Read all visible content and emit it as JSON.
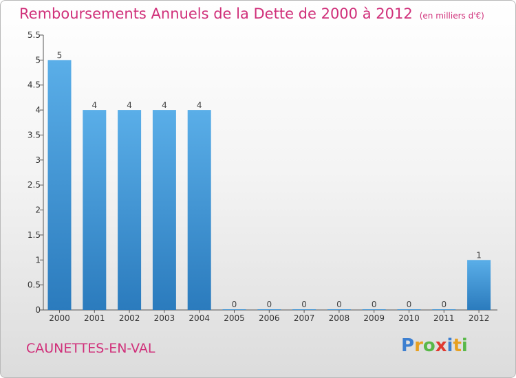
{
  "chart_data": {
    "type": "bar",
    "title": "Remboursements Annuels de la Dette de 2000 à 2012",
    "subtitle": "(en milliers d'€)",
    "categories": [
      "2000",
      "2001",
      "2002",
      "2003",
      "2004",
      "2005",
      "2006",
      "2007",
      "2008",
      "2009",
      "2010",
      "2011",
      "2012"
    ],
    "values": [
      5,
      4,
      4,
      4,
      4,
      0,
      0,
      0,
      0,
      0,
      0,
      0,
      1
    ],
    "data_labels": [
      "5",
      "4",
      "4",
      "4",
      "4",
      "0",
      "0",
      "0",
      "0",
      "0",
      "0",
      "0",
      "1"
    ],
    "ylim": [
      0,
      5.5
    ],
    "yticks": [
      0,
      0.5,
      1,
      1.5,
      2,
      2.5,
      3,
      3.5,
      4,
      4.5,
      5,
      5.5
    ],
    "ytick_labels": [
      "0",
      "0.5",
      "1",
      "1.5",
      "2",
      "2.5",
      "3",
      "3.5",
      "4",
      "4.5",
      "5",
      "5.5"
    ],
    "grid": false,
    "bar_color_top": "#5aaee8",
    "bar_color_bottom": "#2b7bbd"
  },
  "footer": {
    "place": "CAUNETTES-EN-VAL",
    "brand_letters": [
      "P",
      "r",
      "o",
      "x",
      "i",
      "t",
      "i"
    ],
    "brand_colors": [
      "#3d7fd0",
      "#e8a020",
      "#58b848",
      "#e03a30",
      "#3d7fd0",
      "#e8a020",
      "#58b848"
    ]
  },
  "colors": {
    "accent": "#d0307a",
    "axis": "#555555"
  }
}
